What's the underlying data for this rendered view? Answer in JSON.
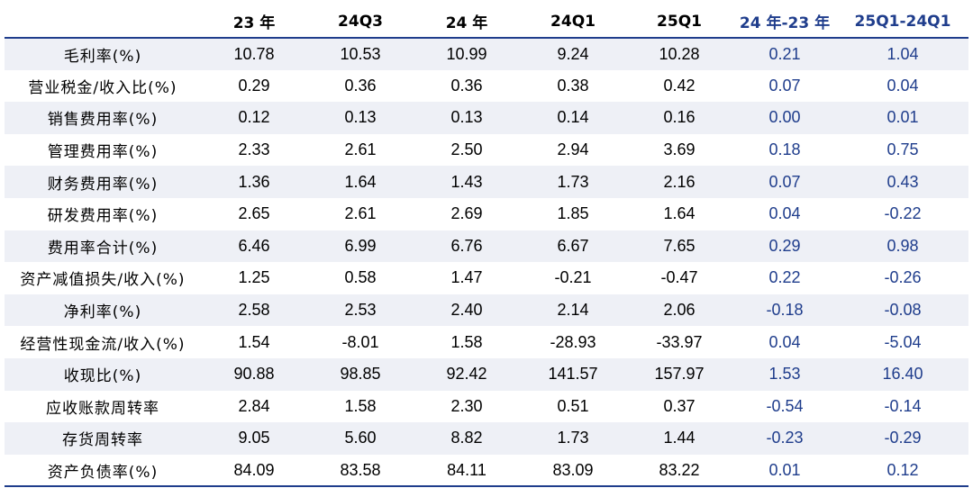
{
  "table": {
    "headers": [
      "",
      "23 年",
      "24Q3",
      "24 年",
      "24Q1",
      "25Q1",
      "24 年-23 年",
      "25Q1-24Q1"
    ],
    "rows": [
      [
        "毛利率(%)",
        "10.78",
        "10.53",
        "10.99",
        "9.24",
        "10.28",
        "0.21",
        "1.04"
      ],
      [
        "营业税金/收入比(%)",
        "0.29",
        "0.36",
        "0.36",
        "0.38",
        "0.42",
        "0.07",
        "0.04"
      ],
      [
        "销售费用率(%)",
        "0.12",
        "0.13",
        "0.13",
        "0.14",
        "0.16",
        "0.00",
        "0.01"
      ],
      [
        "管理费用率(%)",
        "2.33",
        "2.61",
        "2.50",
        "2.94",
        "3.69",
        "0.18",
        "0.75"
      ],
      [
        "财务费用率(%)",
        "1.36",
        "1.64",
        "1.43",
        "1.73",
        "2.16",
        "0.07",
        "0.43"
      ],
      [
        "研发费用率(%)",
        "2.65",
        "2.61",
        "2.69",
        "1.85",
        "1.64",
        "0.04",
        "-0.22"
      ],
      [
        "费用率合计(%)",
        "6.46",
        "6.99",
        "6.76",
        "6.67",
        "7.65",
        "0.29",
        "0.98"
      ],
      [
        "资产减值损失/收入(%)",
        "1.25",
        "0.58",
        "1.47",
        "-0.21",
        "-0.47",
        "0.22",
        "-0.26"
      ],
      [
        "净利率(%)",
        "2.58",
        "2.53",
        "2.40",
        "2.14",
        "2.06",
        "-0.18",
        "-0.08"
      ],
      [
        "经营性现金流/收入(%)",
        "1.54",
        "-8.01",
        "1.58",
        "-28.93",
        "-33.97",
        "0.04",
        "-5.04"
      ],
      [
        "收现比(%)",
        "90.88",
        "98.85",
        "92.42",
        "141.57",
        "157.97",
        "1.53",
        "16.40"
      ],
      [
        "应收账款周转率",
        "2.84",
        "1.58",
        "2.30",
        "0.51",
        "0.37",
        "-0.54",
        "-0.14"
      ],
      [
        "存货周转率",
        "9.05",
        "5.60",
        "8.82",
        "1.73",
        "1.44",
        "-0.23",
        "-0.29"
      ],
      [
        "资产负债率(%)",
        "84.09",
        "83.58",
        "84.11",
        "83.09",
        "83.22",
        "0.01",
        "0.12"
      ]
    ]
  },
  "colors": {
    "header_rule": "#1f3d8c",
    "diff_text": "#1f3d8c",
    "stripe": "#eef0f6"
  }
}
